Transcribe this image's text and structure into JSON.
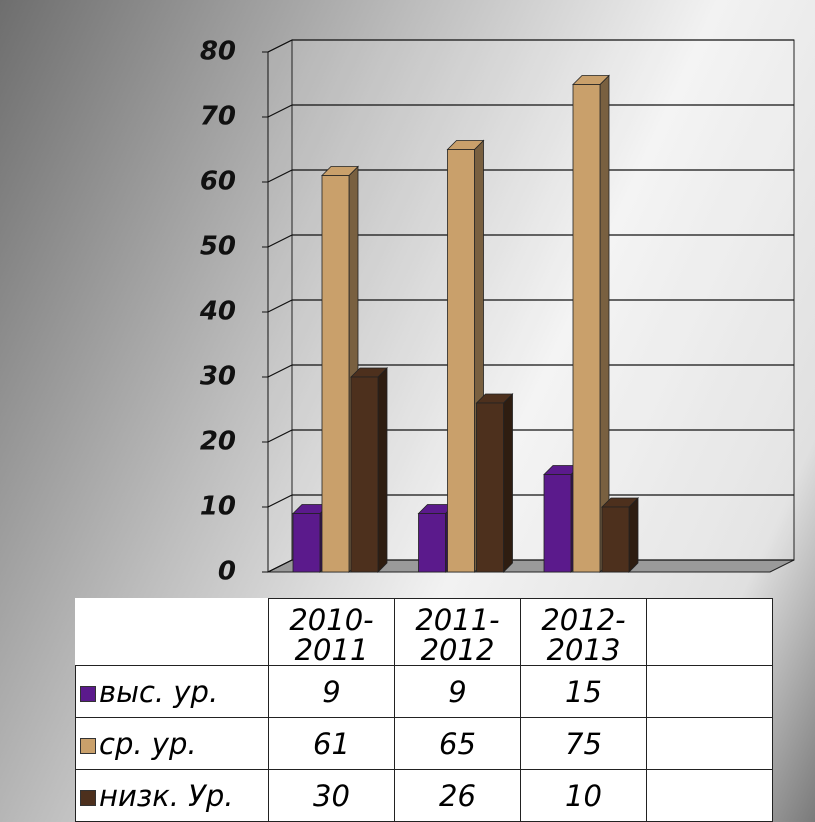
{
  "chart_data": {
    "type": "bar3d",
    "categories": [
      "2010-2011",
      "2011-2012",
      "2012-2013",
      null
    ],
    "series": [
      {
        "name": "выс. ур.",
        "color": "#5b1a8c",
        "values": [
          9,
          9,
          15,
          null
        ]
      },
      {
        "name": "ср. ур.",
        "color": "#c9a06b",
        "values": [
          61,
          65,
          75,
          null
        ]
      },
      {
        "name": "низк. Ур.",
        "color": "#4d301d",
        "values": [
          30,
          26,
          10,
          null
        ]
      }
    ],
    "ylim": [
      0,
      80
    ],
    "yticks": [
      0,
      10,
      20,
      30,
      40,
      50,
      60,
      70,
      80
    ],
    "grid": true,
    "data_table": true
  }
}
